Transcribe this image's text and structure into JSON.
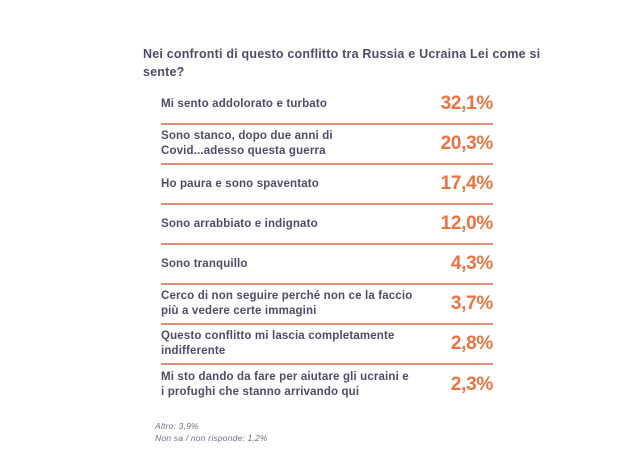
{
  "title": "Nei confronti di questo conflitto tra Russia e Ucraina Lei come si sente?",
  "chart_data": {
    "type": "table",
    "title": "Nei confronti di questo conflitto tra Russia e Ucraina Lei come si sente?",
    "categories": [
      "Mi sento addolorato e turbato",
      "Sono stanco, dopo due anni di Covid...adesso questa guerra",
      "Ho paura e sono spaventato",
      "Sono arrabbiato e indignato",
      "Sono tranquillo",
      "Cerco di non seguire perché non ce la faccio più a vedere certe immagini",
      "Questo conflitto mi lascia completamente indifferente",
      "Mi sto dando da fare per aiutare gli ucraini e i profughi che stanno arrivando qui"
    ],
    "values": [
      32.1,
      20.3,
      17.4,
      12.0,
      4.3,
      3.7,
      2.8,
      2.3
    ],
    "value_labels": [
      "32,1%",
      "20,3%",
      "17,4%",
      "12,0%",
      "4,3%",
      "3,7%",
      "2,8%",
      "2,3%"
    ],
    "unit": "%",
    "footnotes": [
      "Altro: 3,9%",
      "Non sa / non risponde: 1,2%"
    ],
    "legend": "none",
    "grid": "row-dividers"
  },
  "colors": {
    "background": "#ffffff",
    "text": "#4D4D6B",
    "accent_percent": "#EB7340",
    "divider": "#DF9176",
    "footnote_text": "#6E6E88"
  }
}
